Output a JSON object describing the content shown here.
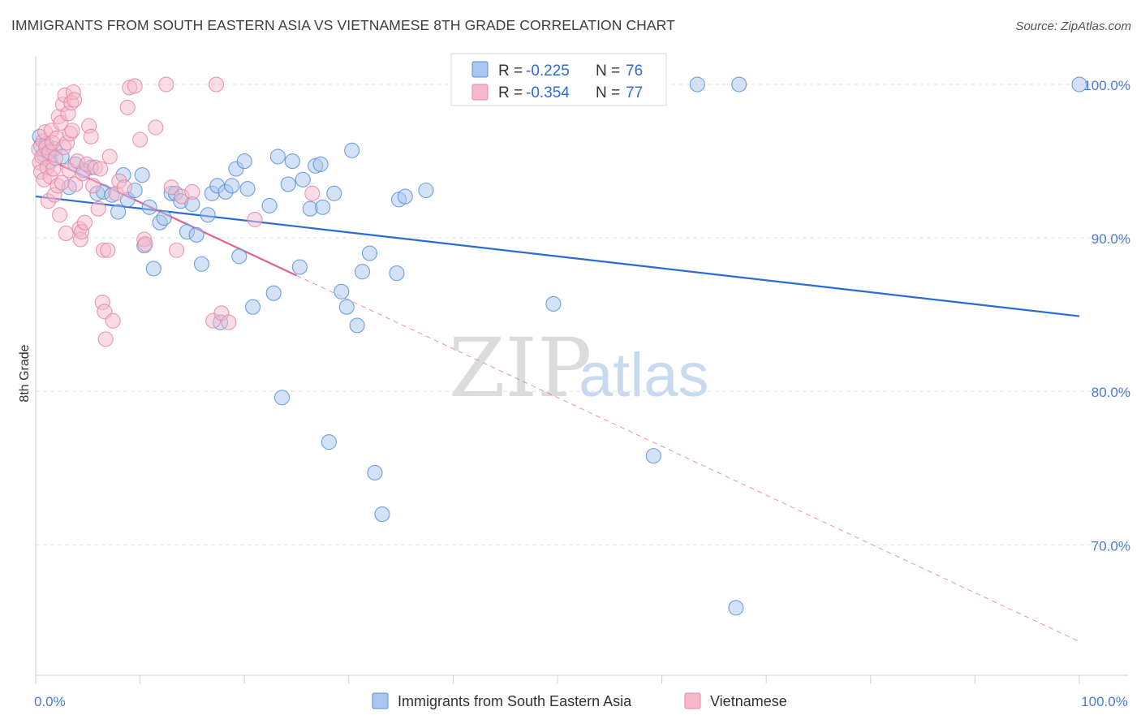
{
  "header": {
    "title": "IMMIGRANTS FROM SOUTH EASTERN ASIA VS VIETNAMESE 8TH GRADE CORRELATION CHART",
    "source": "Source: ZipAtlas.com"
  },
  "watermark": {
    "zip": "ZIP",
    "atlas": "atlas"
  },
  "colors": {
    "blue_fill": "#a9c6f0",
    "blue_stroke": "#5b8fd6",
    "blue_line": "#2b6cd0",
    "pink_fill": "#f6b9cc",
    "pink_stroke": "#e487a6",
    "pink_line": "#e0628c",
    "tick_text": "#4a7bd0",
    "grid": "#e3e3e3"
  },
  "chart_data": {
    "type": "scatter",
    "xlabel": "",
    "ylabel": "8th Grade",
    "xlim": [
      0,
      100
    ],
    "ylim": [
      61.5,
      101.8
    ],
    "x_ticks": [
      {
        "value": 0,
        "label": "0.0%"
      },
      {
        "value": 100,
        "label": "100.0%"
      }
    ],
    "y_ticks": [
      {
        "value": 100,
        "label": "100.0%"
      },
      {
        "value": 90,
        "label": "90.0%"
      },
      {
        "value": 80,
        "label": "80.0%"
      },
      {
        "value": 70,
        "label": "70.0%"
      }
    ],
    "grid": "horizontal dashed",
    "legend_top": [
      {
        "r_label": "R = ",
        "r_value": "-0.225",
        "n_label": "N = ",
        "n_value": "76",
        "series": "blue"
      },
      {
        "r_label": "R = ",
        "r_value": "-0.354",
        "n_label": "N = ",
        "n_value": "77",
        "series": "pink"
      }
    ],
    "series": [
      {
        "name": "Immigrants from South Eastern Asia",
        "color": "blue",
        "trend": {
          "x": [
            0,
            100
          ],
          "y": [
            92.7,
            84.9
          ],
          "solid_to": 100
        },
        "points": [
          [
            0.4,
            96.6
          ],
          [
            0.5,
            96.0
          ],
          [
            0.8,
            95.4
          ],
          [
            1.0,
            96.1
          ],
          [
            1.2,
            95.6
          ],
          [
            1.4,
            95.0
          ],
          [
            1.8,
            95.8
          ],
          [
            2.5,
            95.3
          ],
          [
            3.2,
            93.3
          ],
          [
            3.8,
            94.8
          ],
          [
            4.6,
            94.4
          ],
          [
            5.3,
            94.6
          ],
          [
            5.9,
            92.9
          ],
          [
            6.5,
            93.0
          ],
          [
            7.3,
            92.8
          ],
          [
            7.9,
            91.7
          ],
          [
            8.4,
            94.1
          ],
          [
            8.8,
            92.5
          ],
          [
            9.5,
            93.1
          ],
          [
            10.2,
            94.1
          ],
          [
            10.4,
            89.5
          ],
          [
            10.9,
            92.0
          ],
          [
            11.3,
            88.0
          ],
          [
            11.9,
            91.0
          ],
          [
            12.3,
            91.3
          ],
          [
            13.0,
            92.9
          ],
          [
            13.4,
            92.9
          ],
          [
            13.9,
            92.4
          ],
          [
            14.5,
            90.4
          ],
          [
            15.0,
            92.2
          ],
          [
            15.4,
            90.2
          ],
          [
            15.9,
            88.3
          ],
          [
            16.5,
            91.5
          ],
          [
            16.9,
            92.9
          ],
          [
            17.4,
            93.4
          ],
          [
            17.7,
            84.5
          ],
          [
            18.2,
            93.0
          ],
          [
            18.8,
            93.4
          ],
          [
            19.2,
            94.5
          ],
          [
            19.5,
            88.8
          ],
          [
            20.0,
            95.0
          ],
          [
            20.3,
            93.2
          ],
          [
            20.8,
            85.5
          ],
          [
            22.4,
            92.1
          ],
          [
            22.8,
            86.4
          ],
          [
            23.2,
            95.3
          ],
          [
            23.6,
            79.6
          ],
          [
            24.2,
            93.5
          ],
          [
            24.6,
            95.0
          ],
          [
            25.3,
            88.1
          ],
          [
            25.6,
            93.8
          ],
          [
            26.3,
            91.9
          ],
          [
            26.8,
            94.7
          ],
          [
            27.3,
            94.8
          ],
          [
            27.5,
            92.0
          ],
          [
            28.1,
            76.7
          ],
          [
            28.6,
            92.9
          ],
          [
            29.3,
            86.5
          ],
          [
            29.8,
            85.5
          ],
          [
            30.3,
            95.7
          ],
          [
            30.8,
            84.3
          ],
          [
            31.3,
            87.8
          ],
          [
            32.0,
            89.0
          ],
          [
            32.5,
            74.7
          ],
          [
            33.2,
            72.0
          ],
          [
            34.6,
            87.7
          ],
          [
            34.8,
            92.5
          ],
          [
            35.4,
            92.7
          ],
          [
            37.4,
            93.1
          ],
          [
            43.6,
            100.0
          ],
          [
            49.6,
            85.7
          ],
          [
            59.2,
            75.8
          ],
          [
            63.4,
            100.0
          ],
          [
            67.4,
            100.0
          ],
          [
            67.1,
            65.9
          ],
          [
            100.0,
            100.0
          ]
        ]
      },
      {
        "name": "Vietnamese",
        "color": "pink",
        "trend": {
          "x": [
            0,
            100
          ],
          "y": [
            95.5,
            63.7
          ],
          "solid_to": 25.0
        },
        "points": [
          [
            0.3,
            95.8
          ],
          [
            0.4,
            94.9
          ],
          [
            0.5,
            94.3
          ],
          [
            0.6,
            95.3
          ],
          [
            0.7,
            96.3
          ],
          [
            0.8,
            93.8
          ],
          [
            0.9,
            96.9
          ],
          [
            1.0,
            95.9
          ],
          [
            1.1,
            94.6
          ],
          [
            1.2,
            92.4
          ],
          [
            1.3,
            95.6
          ],
          [
            1.4,
            94.0
          ],
          [
            1.5,
            97.0
          ],
          [
            1.6,
            96.2
          ],
          [
            1.7,
            94.5
          ],
          [
            1.8,
            92.8
          ],
          [
            1.9,
            95.2
          ],
          [
            2.0,
            96.5
          ],
          [
            2.1,
            93.4
          ],
          [
            2.2,
            97.9
          ],
          [
            2.3,
            91.5
          ],
          [
            2.4,
            97.5
          ],
          [
            2.5,
            93.6
          ],
          [
            2.6,
            98.7
          ],
          [
            2.7,
            95.9
          ],
          [
            2.8,
            99.3
          ],
          [
            2.9,
            90.3
          ],
          [
            3.0,
            96.2
          ],
          [
            3.1,
            98.1
          ],
          [
            3.2,
            94.4
          ],
          [
            3.3,
            96.8
          ],
          [
            3.4,
            98.8
          ],
          [
            3.5,
            97.0
          ],
          [
            3.6,
            99.5
          ],
          [
            3.7,
            99.0
          ],
          [
            3.8,
            93.5
          ],
          [
            4.0,
            95.0
          ],
          [
            4.2,
            90.6
          ],
          [
            4.3,
            89.9
          ],
          [
            4.4,
            90.4
          ],
          [
            4.5,
            94.2
          ],
          [
            4.7,
            91.0
          ],
          [
            4.9,
            94.8
          ],
          [
            5.1,
            97.3
          ],
          [
            5.3,
            96.6
          ],
          [
            5.5,
            93.4
          ],
          [
            5.7,
            94.6
          ],
          [
            6.0,
            91.9
          ],
          [
            6.2,
            94.5
          ],
          [
            6.4,
            85.8
          ],
          [
            6.5,
            89.2
          ],
          [
            6.6,
            85.2
          ],
          [
            6.7,
            83.4
          ],
          [
            6.9,
            89.2
          ],
          [
            7.1,
            95.3
          ],
          [
            7.4,
            84.6
          ],
          [
            7.7,
            92.9
          ],
          [
            8.0,
            93.7
          ],
          [
            8.5,
            93.3
          ],
          [
            8.8,
            98.5
          ],
          [
            9.0,
            99.8
          ],
          [
            9.5,
            99.9
          ],
          [
            10.0,
            96.4
          ],
          [
            10.4,
            89.9
          ],
          [
            10.5,
            89.6
          ],
          [
            11.5,
            97.2
          ],
          [
            12.5,
            100.0
          ],
          [
            13.0,
            93.3
          ],
          [
            13.5,
            89.2
          ],
          [
            14.0,
            92.7
          ],
          [
            15.0,
            93.0
          ],
          [
            17.0,
            84.6
          ],
          [
            17.3,
            100.0
          ],
          [
            17.8,
            85.1
          ],
          [
            18.5,
            84.5
          ],
          [
            21.0,
            91.2
          ],
          [
            26.5,
            92.9
          ]
        ]
      }
    ]
  },
  "bottom_legend": [
    {
      "label": "Immigrants from South Eastern Asia",
      "color": "blue"
    },
    {
      "label": "Vietnamese",
      "color": "pink"
    }
  ]
}
